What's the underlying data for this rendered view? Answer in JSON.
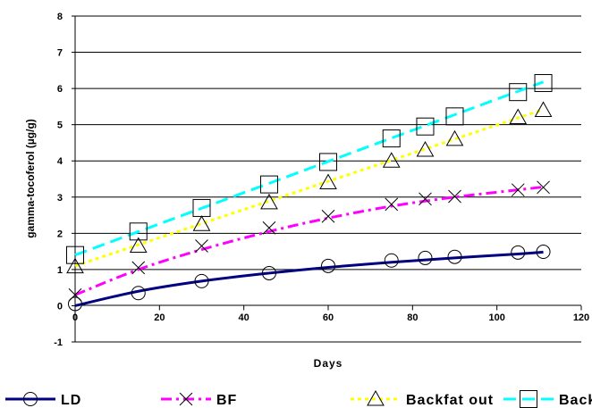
{
  "chart_data": {
    "type": "line",
    "title": "",
    "xlabel": "Days",
    "ylabel": "gamma-tocoferol (µg/g)",
    "xlim": [
      0,
      120
    ],
    "ylim": [
      -1,
      8
    ],
    "x_ticks": [
      0,
      20,
      40,
      60,
      80,
      100,
      120
    ],
    "y_ticks": [
      -1,
      0,
      1,
      2,
      3,
      4,
      5,
      6,
      7,
      8
    ],
    "grid": "horizontal",
    "legend_position": "bottom",
    "series": [
      {
        "name": "LD",
        "marker": "circle",
        "line_style": "solid",
        "color": "#000080",
        "points": [
          [
            0,
            0.05
          ],
          [
            15,
            0.35
          ],
          [
            30,
            0.68
          ],
          [
            46,
            0.9
          ],
          [
            60,
            1.1
          ],
          [
            75,
            1.25
          ],
          [
            83,
            1.32
          ],
          [
            90,
            1.35
          ],
          [
            105,
            1.47
          ],
          [
            111,
            1.49
          ]
        ],
        "trend": [
          [
            0,
            0
          ],
          [
            15,
            0.4
          ],
          [
            30,
            0.68
          ],
          [
            46,
            0.9
          ],
          [
            60,
            1.06
          ],
          [
            75,
            1.2
          ],
          [
            90,
            1.32
          ],
          [
            105,
            1.43
          ],
          [
            111,
            1.48
          ]
        ]
      },
      {
        "name": "BF",
        "marker": "x",
        "line_style": "dashdot",
        "color": "#ff00ff",
        "points": [
          [
            0,
            0.3
          ],
          [
            15,
            1.05
          ],
          [
            30,
            1.65
          ],
          [
            46,
            2.15
          ],
          [
            60,
            2.47
          ],
          [
            75,
            2.8
          ],
          [
            83,
            2.95
          ],
          [
            90,
            3.02
          ],
          [
            105,
            3.2
          ],
          [
            111,
            3.27
          ]
        ],
        "trend": [
          [
            0,
            0.3
          ],
          [
            15,
            1.0
          ],
          [
            30,
            1.55
          ],
          [
            46,
            2.05
          ],
          [
            60,
            2.42
          ],
          [
            75,
            2.75
          ],
          [
            90,
            3.0
          ],
          [
            105,
            3.2
          ],
          [
            111,
            3.28
          ]
        ]
      },
      {
        "name": "Backfat out",
        "marker": "triangle",
        "line_style": "dotted",
        "color": "#ffff00",
        "points": [
          [
            0,
            1.08
          ],
          [
            15,
            1.65
          ],
          [
            30,
            2.25
          ],
          [
            46,
            2.85
          ],
          [
            60,
            3.4
          ],
          [
            75,
            4.0
          ],
          [
            83,
            4.3
          ],
          [
            90,
            4.6
          ],
          [
            105,
            5.2
          ],
          [
            111,
            5.4
          ]
        ],
        "trend": [
          [
            0,
            1.1
          ],
          [
            111,
            5.42
          ]
        ]
      },
      {
        "name": "Backfat in",
        "marker": "square",
        "line_style": "dashed",
        "color": "#00ffff",
        "points": [
          [
            0,
            1.4
          ],
          [
            15,
            2.05
          ],
          [
            30,
            2.7
          ],
          [
            46,
            3.35
          ],
          [
            60,
            3.97
          ],
          [
            75,
            4.62
          ],
          [
            83,
            4.95
          ],
          [
            90,
            5.23
          ],
          [
            105,
            5.9
          ],
          [
            111,
            6.15
          ]
        ],
        "trend": [
          [
            0,
            1.4
          ],
          [
            111,
            6.18
          ]
        ]
      }
    ]
  }
}
